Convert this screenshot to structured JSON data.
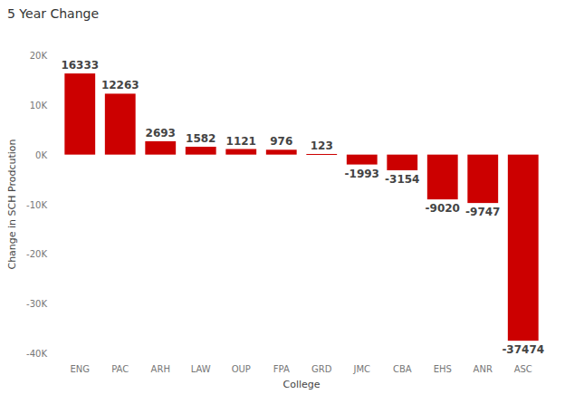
{
  "chart_data": {
    "type": "bar",
    "title": "5 Year Change",
    "x_label": "College",
    "y_label": "Change in SCH Prodcution",
    "categories": [
      "ENG",
      "PAC",
      "ARH",
      "LAW",
      "OUP",
      "FPA",
      "GRD",
      "JMC",
      "CBA",
      "EHS",
      "ANR",
      "ASC"
    ],
    "values": [
      16333,
      12263,
      2693,
      1582,
      1121,
      976,
      123,
      -1993,
      -3154,
      -9020,
      -9747,
      -37474
    ],
    "color": "#cc0000",
    "ylim": [
      -40000,
      20000
    ],
    "yticks": [
      {
        "value": -40000,
        "label": "-40K"
      },
      {
        "value": -30000,
        "label": "-30K"
      },
      {
        "value": -20000,
        "label": "-20K"
      },
      {
        "value": -10000,
        "label": "-10K"
      },
      {
        "value": 0,
        "label": "0K"
      },
      {
        "value": 10000,
        "label": "10K"
      },
      {
        "value": 20000,
        "label": "20K"
      }
    ],
    "grid": false,
    "data_labels": true
  }
}
